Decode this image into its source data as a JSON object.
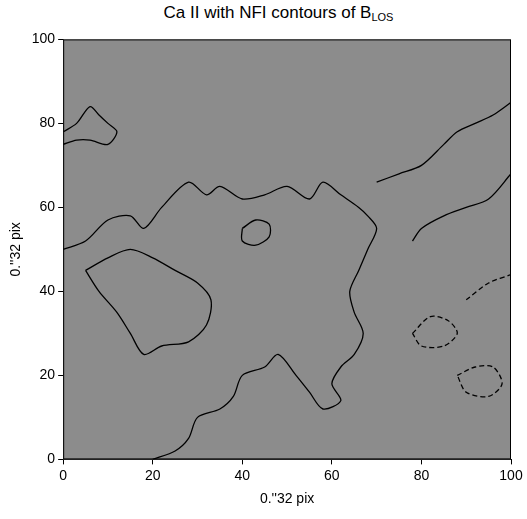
{
  "chart_data": {
    "type": "contour",
    "title": "Ca II with NFI contours of B",
    "title_subscript": "LOS",
    "x_label": "0.''32 pix",
    "y_label": "0.''32 pix",
    "xlim": [
      0,
      100
    ],
    "ylim": [
      0,
      100
    ],
    "xticks": [
      0,
      20,
      40,
      60,
      80,
      100
    ],
    "yticks": [
      0,
      20,
      40,
      60,
      80,
      100
    ],
    "grid": false,
    "series": [
      {
        "color": "#000000",
        "line_style": "solid",
        "x": [
          0,
          5,
          10,
          15,
          18,
          22,
          28,
          32,
          35,
          40,
          45,
          50,
          55,
          58,
          62,
          66,
          68,
          70,
          68,
          66,
          64,
          65,
          67,
          65,
          62,
          60,
          62,
          58,
          55,
          52,
          48,
          45,
          40,
          38,
          35,
          30,
          28,
          25,
          20
        ],
        "values": [
          50,
          52,
          57,
          58,
          55,
          60,
          66,
          63,
          65,
          62,
          63,
          65,
          62,
          66,
          63,
          60,
          58,
          55,
          50,
          45,
          40,
          35,
          30,
          25,
          22,
          18,
          14,
          12,
          16,
          20,
          25,
          22,
          20,
          15,
          12,
          10,
          5,
          2,
          0
        ]
      },
      {
        "color": "#000000",
        "line_style": "solid",
        "x": [
          5,
          10,
          15,
          20,
          25,
          30,
          33,
          32,
          28,
          22,
          18,
          15,
          12,
          8,
          5
        ],
        "values": [
          45,
          48,
          50,
          48,
          45,
          42,
          38,
          32,
          28,
          27,
          25,
          30,
          35,
          40,
          45
        ]
      },
      {
        "color": "#000000",
        "line_style": "solid",
        "x": [
          0,
          3,
          6,
          8,
          10,
          12,
          10,
          6,
          3,
          0
        ],
        "values": [
          78,
          80,
          84,
          82,
          80,
          78,
          75,
          76,
          76,
          75
        ]
      },
      {
        "color": "#000000",
        "line_style": "solid",
        "x": [
          40,
          43,
          46,
          46,
          43,
          40,
          40
        ],
        "values": [
          55,
          57,
          56,
          53,
          51,
          52,
          55
        ]
      },
      {
        "color": "#000000",
        "line_style": "solid",
        "x": [
          70,
          75,
          80,
          85,
          88,
          92,
          96,
          100
        ],
        "values": [
          66,
          68,
          70,
          75,
          78,
          80,
          82,
          85
        ]
      },
      {
        "color": "#000000",
        "line_style": "solid",
        "x": [
          78,
          80,
          85,
          90,
          95,
          100
        ],
        "values": [
          52,
          55,
          58,
          60,
          62,
          68
        ]
      },
      {
        "color": "#000000",
        "line_style": "dashed",
        "x": [
          78,
          82,
          86,
          88,
          85,
          80,
          78
        ],
        "values": [
          30,
          34,
          33,
          30,
          27,
          27,
          30
        ]
      },
      {
        "color": "#000000",
        "line_style": "dashed",
        "x": [
          88,
          92,
          96,
          98,
          95,
          90,
          88
        ],
        "values": [
          20,
          22,
          22,
          18,
          15,
          16,
          20
        ]
      },
      {
        "color": "#000000",
        "line_style": "dashed",
        "x": [
          90,
          95,
          100
        ],
        "values": [
          38,
          42,
          44
        ]
      }
    ]
  }
}
